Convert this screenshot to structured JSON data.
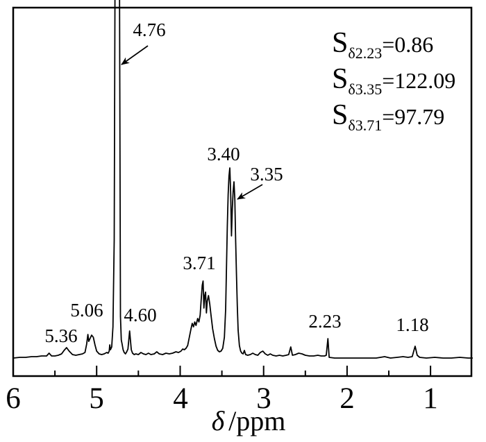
{
  "colors": {
    "foreground": "#000000",
    "background": "#ffffff"
  },
  "chart_data": {
    "type": "line",
    "description_visible": "1H NMR spectrum trace with labeled peaks",
    "xlabel": "δ /ppm",
    "xlabel_parts": {
      "delta": "δ",
      "unit": "/ppm"
    },
    "ylabel": "",
    "x_axis": {
      "min": 0.5,
      "max": 6.0,
      "reversed": true,
      "major_ticks": [
        6,
        5,
        4,
        3,
        2,
        1
      ],
      "minor_ticks": [
        5.5,
        4.5,
        3.5,
        2.5,
        1.5
      ],
      "tick_labels": [
        "6",
        "5",
        "4",
        "3",
        "2",
        "1"
      ]
    },
    "grid": false,
    "legend": false,
    "peaks": [
      {
        "ppm": 5.36,
        "label": "5.36"
      },
      {
        "ppm": 5.06,
        "label": "5.06"
      },
      {
        "ppm": 4.76,
        "label": "4.76",
        "note": "off-scale clipped peak, arrow-marked"
      },
      {
        "ppm": 4.6,
        "label": "4.60"
      },
      {
        "ppm": 3.71,
        "label": "3.71"
      },
      {
        "ppm": 3.4,
        "label": "3.40"
      },
      {
        "ppm": 3.35,
        "label": "3.35",
        "note": "arrow-marked"
      },
      {
        "ppm": 2.23,
        "label": "2.23"
      },
      {
        "ppm": 1.18,
        "label": "1.18"
      }
    ],
    "integrals": [
      {
        "label": "S",
        "subscript": "δ2.23",
        "value": "=0.86"
      },
      {
        "label": "S",
        "subscript": "δ3.35",
        "value": "=122.09"
      },
      {
        "label": "S",
        "subscript": "δ3.71",
        "value": "=97.79"
      }
    ],
    "trace_units": "pairs of [chemical shift ppm, intensity in arbitrary units above baseline]",
    "trace": [
      [
        6.0,
        0
      ],
      [
        5.92,
        1
      ],
      [
        5.85,
        1
      ],
      [
        5.78,
        2
      ],
      [
        5.72,
        2
      ],
      [
        5.66,
        3
      ],
      [
        5.6,
        3
      ],
      [
        5.57,
        7
      ],
      [
        5.54,
        3
      ],
      [
        5.5,
        3
      ],
      [
        5.46,
        4
      ],
      [
        5.42,
        6
      ],
      [
        5.39,
        11
      ],
      [
        5.36,
        15
      ],
      [
        5.33,
        10
      ],
      [
        5.29,
        5
      ],
      [
        5.25,
        4
      ],
      [
        5.21,
        5
      ],
      [
        5.17,
        6
      ],
      [
        5.14,
        8
      ],
      [
        5.12,
        20
      ],
      [
        5.105,
        34
      ],
      [
        5.095,
        24
      ],
      [
        5.08,
        28
      ],
      [
        5.06,
        33
      ],
      [
        5.04,
        30
      ],
      [
        5.02,
        19
      ],
      [
        5.0,
        10
      ],
      [
        4.97,
        6
      ],
      [
        4.94,
        5
      ],
      [
        4.91,
        6
      ],
      [
        4.88,
        8
      ],
      [
        4.862,
        7
      ],
      [
        4.85,
        10
      ],
      [
        4.843,
        19
      ],
      [
        4.835,
        12
      ],
      [
        4.82,
        16
      ],
      [
        4.805,
        45
      ],
      [
        4.79,
        170
      ],
      [
        4.778,
        620
      ],
      [
        4.728,
        620
      ],
      [
        4.715,
        60
      ],
      [
        4.705,
        26
      ],
      [
        4.695,
        20
      ],
      [
        4.683,
        12
      ],
      [
        4.67,
        8
      ],
      [
        4.655,
        6
      ],
      [
        4.64,
        9
      ],
      [
        4.625,
        13
      ],
      [
        4.605,
        39
      ],
      [
        4.585,
        12
      ],
      [
        4.57,
        7
      ],
      [
        4.55,
        5
      ],
      [
        4.53,
        6
      ],
      [
        4.5,
        5
      ],
      [
        4.47,
        8
      ],
      [
        4.44,
        6
      ],
      [
        4.41,
        5
      ],
      [
        4.38,
        7
      ],
      [
        4.35,
        5
      ],
      [
        4.31,
        6
      ],
      [
        4.28,
        9
      ],
      [
        4.25,
        6
      ],
      [
        4.21,
        5
      ],
      [
        4.17,
        7
      ],
      [
        4.13,
        6
      ],
      [
        4.09,
        7
      ],
      [
        4.05,
        9
      ],
      [
        4.02,
        8
      ],
      [
        3.99,
        10
      ],
      [
        3.97,
        13
      ],
      [
        3.95,
        12
      ],
      [
        3.93,
        14
      ],
      [
        3.91,
        18
      ],
      [
        3.89,
        30
      ],
      [
        3.87,
        42
      ],
      [
        3.855,
        50
      ],
      [
        3.84,
        45
      ],
      [
        3.825,
        52
      ],
      [
        3.81,
        47
      ],
      [
        3.79,
        57
      ],
      [
        3.775,
        52
      ],
      [
        3.76,
        62
      ],
      [
        3.75,
        80
      ],
      [
        3.735,
        105
      ],
      [
        3.725,
        111
      ],
      [
        3.715,
        72
      ],
      [
        3.705,
        90
      ],
      [
        3.695,
        95
      ],
      [
        3.685,
        65
      ],
      [
        3.675,
        82
      ],
      [
        3.66,
        90
      ],
      [
        3.645,
        78
      ],
      [
        3.63,
        62
      ],
      [
        3.61,
        42
      ],
      [
        3.59,
        28
      ],
      [
        3.57,
        17
      ],
      [
        3.55,
        11
      ],
      [
        3.53,
        9
      ],
      [
        3.51,
        10
      ],
      [
        3.49,
        14
      ],
      [
        3.47,
        30
      ],
      [
        3.455,
        70
      ],
      [
        3.445,
        130
      ],
      [
        3.435,
        190
      ],
      [
        3.425,
        235
      ],
      [
        3.415,
        262
      ],
      [
        3.405,
        274
      ],
      [
        3.395,
        240
      ],
      [
        3.385,
        176
      ],
      [
        3.375,
        215
      ],
      [
        3.365,
        240
      ],
      [
        3.355,
        254
      ],
      [
        3.345,
        230
      ],
      [
        3.335,
        170
      ],
      [
        3.325,
        120
      ],
      [
        3.315,
        75
      ],
      [
        3.305,
        40
      ],
      [
        3.29,
        18
      ],
      [
        3.275,
        10
      ],
      [
        3.26,
        7
      ],
      [
        3.245,
        6
      ],
      [
        3.23,
        11
      ],
      [
        3.215,
        5
      ],
      [
        3.19,
        4
      ],
      [
        3.16,
        5
      ],
      [
        3.13,
        7
      ],
      [
        3.1,
        5
      ],
      [
        3.07,
        4
      ],
      [
        3.04,
        8
      ],
      [
        3.01,
        10
      ],
      [
        2.98,
        6
      ],
      [
        2.95,
        4
      ],
      [
        2.92,
        6
      ],
      [
        2.89,
        4
      ],
      [
        2.85,
        3
      ],
      [
        2.81,
        4
      ],
      [
        2.77,
        3
      ],
      [
        2.73,
        4
      ],
      [
        2.7,
        5
      ],
      [
        2.675,
        16
      ],
      [
        2.655,
        4
      ],
      [
        2.62,
        5
      ],
      [
        2.58,
        7
      ],
      [
        2.54,
        6
      ],
      [
        2.5,
        4
      ],
      [
        2.45,
        3
      ],
      [
        2.4,
        3
      ],
      [
        2.35,
        4
      ],
      [
        2.31,
        3
      ],
      [
        2.27,
        3
      ],
      [
        2.25,
        4
      ],
      [
        2.23,
        28
      ],
      [
        2.215,
        1
      ],
      [
        2.15,
        0
      ],
      [
        2.05,
        0
      ],
      [
        1.95,
        0
      ],
      [
        1.85,
        0
      ],
      [
        1.75,
        0
      ],
      [
        1.65,
        0
      ],
      [
        1.55,
        2
      ],
      [
        1.48,
        0
      ],
      [
        1.4,
        1
      ],
      [
        1.33,
        2
      ],
      [
        1.27,
        1
      ],
      [
        1.22,
        2
      ],
      [
        1.185,
        17
      ],
      [
        1.16,
        4
      ],
      [
        1.13,
        1
      ],
      [
        1.05,
        0
      ],
      [
        0.95,
        1
      ],
      [
        0.85,
        0
      ],
      [
        0.75,
        0
      ],
      [
        0.65,
        1
      ],
      [
        0.55,
        0
      ],
      [
        0.5,
        0
      ]
    ]
  }
}
